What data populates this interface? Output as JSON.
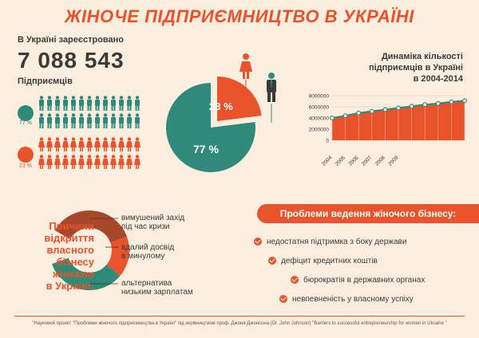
{
  "title": "ЖІНОЧЕ ПІДПРИЄМНИЦТВО В УКРАЇНІ",
  "registered": {
    "label": "В Україні зареєстровано",
    "number": "7 088 543",
    "sublabel": "Підприємців",
    "men_percent_label": "77 %",
    "women_percent_label": "23 %"
  },
  "pie": {
    "women_label": "23 %",
    "men_label": "77 %",
    "women_share": 23,
    "men_share": 77
  },
  "colors": {
    "accent": "#e8532b",
    "teal": "#2f8a79",
    "brown": "#a8472a",
    "text": "#3a3a3a",
    "background": "#fbeedf"
  },
  "trend": {
    "title_lines": [
      "Динаміка кількості",
      "підприємців в Україні",
      "в 2004-2014"
    ],
    "chart_data": {
      "type": "area",
      "x": [
        "2004",
        "2005",
        "2006",
        "2007",
        "2008",
        "2009",
        "2010",
        "2011",
        "2012",
        "2013",
        "2014"
      ],
      "values": [
        4000000,
        4400000,
        4900000,
        5200000,
        5500000,
        5800000,
        6100000,
        6400000,
        6600000,
        6900000,
        7088543
      ],
      "ylim": [
        0,
        8000000
      ],
      "yticks": [
        "8000000",
        "6000000",
        "4000000",
        "2000000",
        "0"
      ],
      "xtick_labels": [
        "2004",
        "2005",
        "2006",
        "2007",
        "2008",
        "2009"
      ]
    }
  },
  "reasons": {
    "title_lines": [
      "Причини",
      "відкриття",
      "власного",
      "бізнесу",
      "жінками",
      "в Україні:"
    ],
    "items": [
      {
        "lines": [
          "вимушений захід",
          "під час кризи"
        ]
      },
      {
        "lines": [
          "вдалий досвід",
          "в минулому"
        ]
      },
      {
        "lines": [
          "альтернатива",
          "низьким зарплатам"
        ]
      }
    ]
  },
  "problems": {
    "title": "Проблеми ведення жіночого бізнесу:",
    "items": [
      "недостатня підтримка з боку держави",
      "дефіцит кредитних коштів",
      "бюрократія в державних органах",
      "невпевненість у власному успіху"
    ]
  },
  "footer": "\"Науковий проект \"Проблеми жіночого підприємництва в Україні\" під керівництвом проф. Джона Джонсона (Dr. John Johnson) \"Barriers to successful entrepreneurship for women in Ukraine \""
}
